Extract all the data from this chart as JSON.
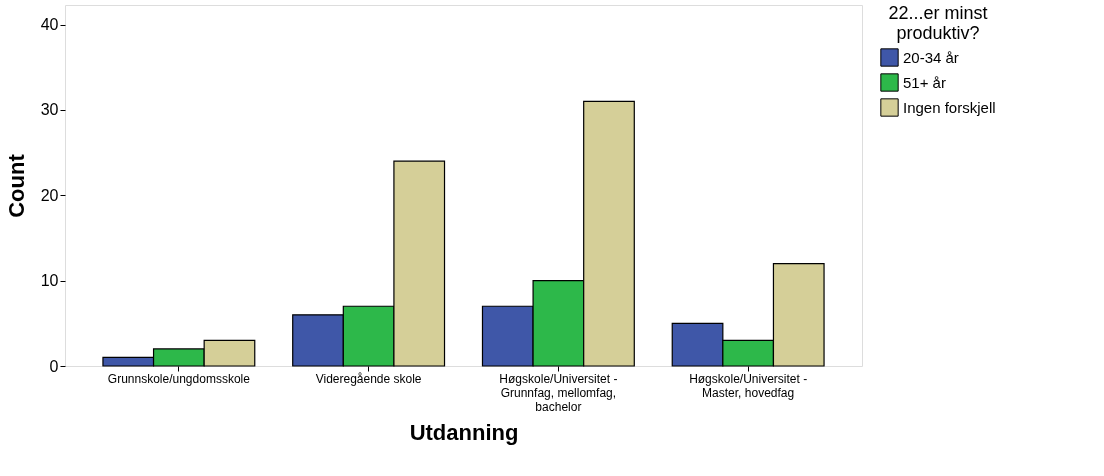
{
  "chart_data": {
    "type": "bar",
    "xlabel": "Utdanning",
    "ylabel": "Count",
    "legend_title": "22...er minst produktiv?",
    "categories": [
      "Grunnskole/ungdomsskole",
      "Videregående skole",
      "Høgskole/Universitet - Grunnfag, mellomfag, bachelor",
      "Høgskole/Universitet - Master, hovedfag"
    ],
    "series": [
      {
        "name": "20-34 år",
        "color": "#3f57a8",
        "values": [
          1,
          6,
          7,
          5
        ]
      },
      {
        "name": "51+ år",
        "color": "#2db84a",
        "values": [
          2,
          7,
          10,
          3
        ]
      },
      {
        "name": "Ingen forskjell",
        "color": "#d5cf98",
        "values": [
          3,
          24,
          31,
          12
        ]
      }
    ],
    "ylim": [
      0,
      42.3
    ],
    "yticks": [
      0,
      10,
      20,
      30,
      40
    ],
    "grid": false,
    "legend": "right"
  }
}
